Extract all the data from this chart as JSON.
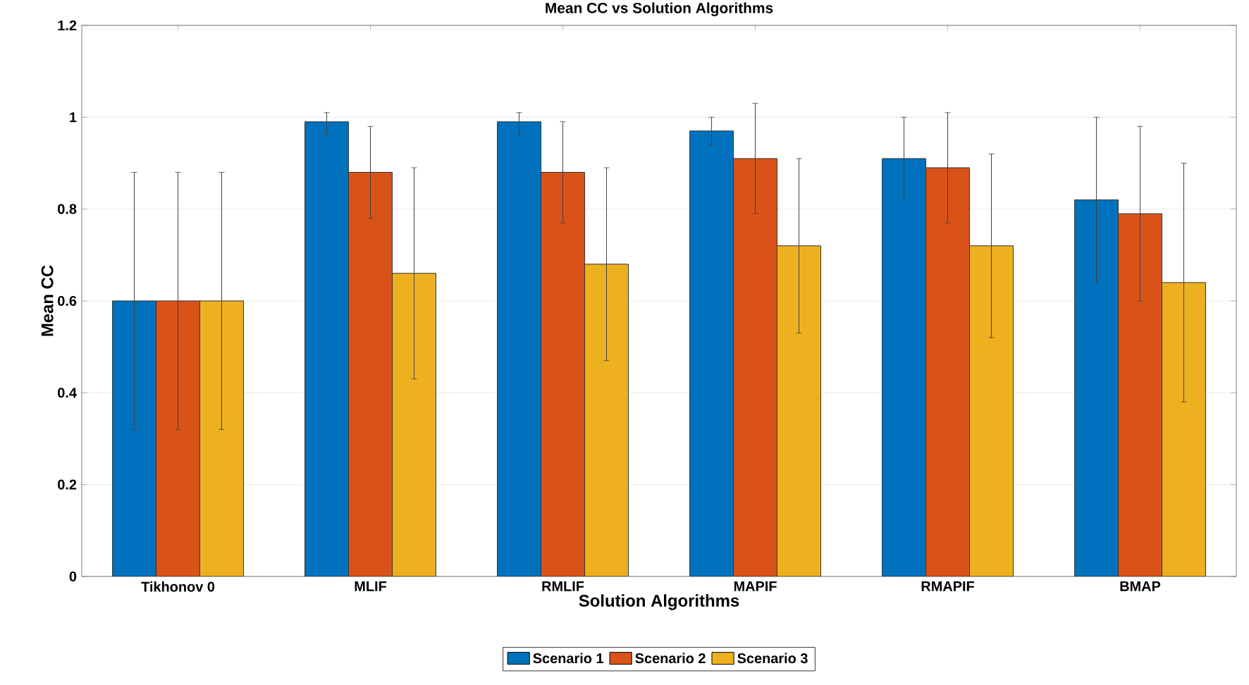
{
  "chart_data": {
    "type": "bar",
    "title": "Mean CC vs Solution Algorithms",
    "xlabel": "Solution Algorithms",
    "ylabel": "Mean CC",
    "categories": [
      "Tikhonov 0",
      "MLIF",
      "RMLIF",
      "MAPIF",
      "RMAPIF",
      "BMAP"
    ],
    "series": [
      {
        "name": "Scenario 1",
        "color": "#0072bd",
        "values": [
          0.6,
          0.99,
          0.99,
          0.97,
          0.91,
          0.82
        ],
        "errors": [
          [
            0.32,
            0.88
          ],
          [
            0.96,
            1.01
          ],
          [
            0.96,
            1.01
          ],
          [
            0.94,
            1.0
          ],
          [
            0.82,
            1.0
          ],
          [
            0.64,
            1.0
          ]
        ]
      },
      {
        "name": "Scenario 2",
        "color": "#d95319",
        "values": [
          0.6,
          0.88,
          0.88,
          0.91,
          0.89,
          0.79
        ],
        "errors": [
          [
            0.32,
            0.88
          ],
          [
            0.78,
            0.98
          ],
          [
            0.77,
            0.99
          ],
          [
            0.79,
            1.03
          ],
          [
            0.77,
            1.01
          ],
          [
            0.6,
            0.98
          ]
        ]
      },
      {
        "name": "Scenario 3",
        "color": "#edb120",
        "values": [
          0.6,
          0.66,
          0.68,
          0.72,
          0.72,
          0.64
        ],
        "errors": [
          [
            0.32,
            0.88
          ],
          [
            0.43,
            0.89
          ],
          [
            0.47,
            0.89
          ],
          [
            0.53,
            0.91
          ],
          [
            0.52,
            0.92
          ],
          [
            0.38,
            0.9
          ]
        ]
      }
    ],
    "ylim": [
      0,
      1.2
    ],
    "yticks": [
      0,
      0.2,
      0.4,
      0.6,
      0.8,
      1,
      1.2
    ],
    "grid": "y",
    "legend": "bottom"
  }
}
